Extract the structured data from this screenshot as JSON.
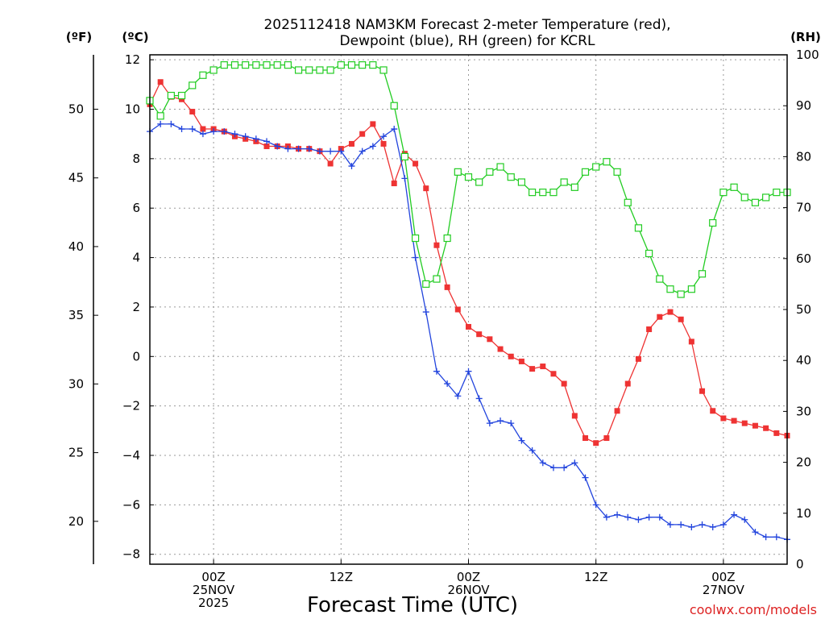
{
  "chart_data": {
    "type": "line",
    "title_line1": "2025112418 NAM3KM Forecast 2-meter Temperature (red),",
    "title_line2": "Dewpoint (blue), RH (green) for KCRL",
    "xlabel": "Forecast Time (UTC)",
    "left_unit_f": "(ºF)",
    "left_unit_c": "(ºC)",
    "right_unit": "(RH)",
    "credit": "coolwx.com/models",
    "x_range_hours": [
      -6,
      54
    ],
    "x_ticks": [
      {
        "hour": 0,
        "lines": [
          "00Z",
          "25NOV",
          "2025"
        ]
      },
      {
        "hour": 12,
        "lines": [
          "12Z"
        ]
      },
      {
        "hour": 24,
        "lines": [
          "00Z",
          "26NOV"
        ]
      },
      {
        "hour": 36,
        "lines": [
          "12Z"
        ]
      },
      {
        "hour": 48,
        "lines": [
          "00Z",
          "27NOV"
        ]
      }
    ],
    "y_celsius": {
      "range": [
        -8.4,
        12.2
      ],
      "ticks": [
        -8,
        -6,
        -4,
        -2,
        0,
        2,
        4,
        6,
        8,
        10,
        12
      ],
      "tick_labels": [
        "−8",
        "−6",
        "−4",
        "−2",
        "0",
        "2",
        "4",
        "6",
        "8",
        "10",
        "12"
      ]
    },
    "y_fahrenheit": {
      "ticks": [
        20,
        25,
        30,
        35,
        40,
        45,
        50
      ],
      "tick_labels": [
        "20",
        "25",
        "30",
        "35",
        "40",
        "45",
        "50"
      ]
    },
    "y_rh": {
      "range": [
        0,
        100
      ],
      "ticks": [
        0,
        10,
        20,
        30,
        40,
        50,
        60,
        70,
        80,
        90,
        100
      ],
      "tick_labels": [
        "0",
        "10",
        "20",
        "30",
        "40",
        "50",
        "60",
        "70",
        "80",
        "90",
        "100"
      ]
    },
    "series": [
      {
        "name": "Temperature",
        "axis": "celsius",
        "color": "#ee3333",
        "marker": "square-filled",
        "x": [
          -6,
          -5,
          -4,
          -3,
          -2,
          -1,
          0,
          1,
          2,
          3,
          4,
          5,
          6,
          7,
          8,
          9,
          10,
          11,
          12,
          13,
          14,
          15,
          16,
          17,
          18,
          19,
          20,
          21,
          22,
          23,
          24,
          25,
          26,
          27,
          28,
          29,
          30,
          31,
          32,
          33,
          34,
          35,
          36,
          37,
          38,
          39,
          40,
          41,
          42,
          43,
          44,
          45,
          46,
          47,
          48,
          49,
          50,
          51,
          52,
          53,
          54
        ],
        "values": [
          10.2,
          11.1,
          10.5,
          10.4,
          9.9,
          9.2,
          9.2,
          9.1,
          8.9,
          8.8,
          8.7,
          8.5,
          8.5,
          8.5,
          8.4,
          8.4,
          8.3,
          7.8,
          8.4,
          8.6,
          9.0,
          9.4,
          8.6,
          7.0,
          8.2,
          7.8,
          6.8,
          4.5,
          2.8,
          1.9,
          1.2,
          0.9,
          0.7,
          0.3,
          0.0,
          -0.2,
          -0.5,
          -0.4,
          -0.7,
          -1.1,
          -2.4,
          -3.3,
          -3.5,
          -3.3,
          -2.2,
          -1.1,
          -0.1,
          1.1,
          1.6,
          1.8,
          1.5,
          0.6,
          -1.4,
          -2.2,
          -2.5,
          -2.6,
          -2.7,
          -2.8,
          -2.9,
          -3.1,
          -3.2
        ]
      },
      {
        "name": "Dewpoint",
        "axis": "celsius",
        "color": "#2244dd",
        "marker": "plus",
        "x": [
          -6,
          -5,
          -4,
          -3,
          -2,
          -1,
          0,
          1,
          2,
          3,
          4,
          5,
          6,
          7,
          8,
          9,
          10,
          11,
          12,
          13,
          14,
          15,
          16,
          17,
          18,
          19,
          20,
          21,
          22,
          23,
          24,
          25,
          26,
          27,
          28,
          29,
          30,
          31,
          32,
          33,
          34,
          35,
          36,
          37,
          38,
          39,
          40,
          41,
          42,
          43,
          44,
          45,
          46,
          47,
          48,
          49,
          50,
          51,
          52,
          53,
          54
        ],
        "values": [
          9.1,
          9.4,
          9.4,
          9.2,
          9.2,
          9.0,
          9.1,
          9.1,
          9.0,
          8.9,
          8.8,
          8.7,
          8.5,
          8.4,
          8.4,
          8.4,
          8.3,
          8.3,
          8.3,
          7.7,
          8.3,
          8.5,
          8.9,
          9.2,
          7.2,
          4.0,
          1.8,
          -0.6,
          -1.1,
          -1.6,
          -0.6,
          -1.7,
          -2.7,
          -2.6,
          -2.7,
          -3.4,
          -3.8,
          -4.3,
          -4.5,
          -4.5,
          -4.3,
          -4.9,
          -6.0,
          -6.5,
          -6.4,
          -6.5,
          -6.6,
          -6.5,
          -6.5,
          -6.8,
          -6.8,
          -6.9,
          -6.8,
          -6.9,
          -6.8,
          -6.4,
          -6.6,
          -7.1,
          -7.3,
          -7.3,
          -7.4
        ]
      },
      {
        "name": "RH",
        "axis": "rh",
        "color": "#22cc22",
        "marker": "square-open",
        "x": [
          -6,
          -5,
          -4,
          -3,
          -2,
          -1,
          0,
          1,
          2,
          3,
          4,
          5,
          6,
          7,
          8,
          9,
          10,
          11,
          12,
          13,
          14,
          15,
          16,
          17,
          18,
          19,
          20,
          21,
          22,
          23,
          24,
          25,
          26,
          27,
          28,
          29,
          30,
          31,
          32,
          33,
          34,
          35,
          36,
          37,
          38,
          39,
          40,
          41,
          42,
          43,
          44,
          45,
          46,
          47,
          48,
          49,
          50,
          51,
          52,
          53,
          54
        ],
        "values": [
          91,
          88,
          92,
          92,
          94,
          96,
          97,
          98,
          98,
          98,
          98,
          98,
          98,
          98,
          97,
          97,
          97,
          97,
          98,
          98,
          98,
          98,
          97,
          90,
          80,
          64,
          55,
          56,
          64,
          77,
          76,
          75,
          77,
          78,
          76,
          75,
          73,
          73,
          73,
          75,
          74,
          77,
          78,
          79,
          77,
          71,
          66,
          61,
          56,
          54,
          53,
          54,
          57,
          67,
          73,
          74,
          72,
          71,
          72,
          73,
          73
        ]
      }
    ]
  }
}
